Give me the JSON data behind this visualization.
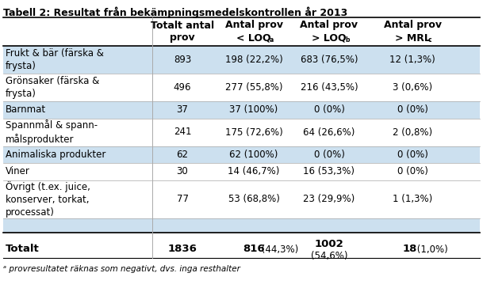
{
  "title": "Tabell 2: Resultat från bekämpningsmedelskontrollen år 2013",
  "rows": [
    {
      "label": "Frukt & bär (färska &\nfrysta)",
      "v1": "893",
      "v2": "198 (22,2%)",
      "v3": "683 (76,5%)",
      "v4": "12 (1,3%)",
      "shaded": true,
      "nlines": 2
    },
    {
      "label": "Grönsaker (färska &\nfrysta)",
      "v1": "496",
      "v2": "277 (55,8%)",
      "v3": "216 (43,5%)",
      "v4": "3 (0,6%)",
      "shaded": false,
      "nlines": 2
    },
    {
      "label": "Barnmat",
      "v1": "37",
      "v2": "37 (100%)",
      "v3": "0 (0%)",
      "v4": "0 (0%)",
      "shaded": true,
      "nlines": 1
    },
    {
      "label": "Spannmål & spann-\nmålsprodukter",
      "v1": "241",
      "v2": "175 (72,6%)",
      "v3": "64 (26,6%)",
      "v4": "2 (0,8%)",
      "shaded": false,
      "nlines": 2
    },
    {
      "label": "Animaliska produkter",
      "v1": "62",
      "v2": "62 (100%)",
      "v3": "0 (0%)",
      "v4": "0 (0%)",
      "shaded": true,
      "nlines": 1
    },
    {
      "label": "Viner",
      "v1": "30",
      "v2": "14 (46,7%)",
      "v3": "16 (53,3%)",
      "v4": "0 (0%)",
      "shaded": false,
      "nlines": 1
    },
    {
      "label": "Övrigt (t.ex. juice,\nkonserver, torkat,\nprocessat)",
      "v1": "77",
      "v2": "53 (68,8%)",
      "v3": "23 (29,9%)",
      "v4": "1 (1,3%)",
      "shaded": false,
      "nlines": 3
    }
  ],
  "shaded_color": "#cce0ef",
  "footer": "a  provresultatet räknas som negativt, dvs. inga resthalter",
  "font_size": 8.5,
  "title_font_size": 9.0
}
